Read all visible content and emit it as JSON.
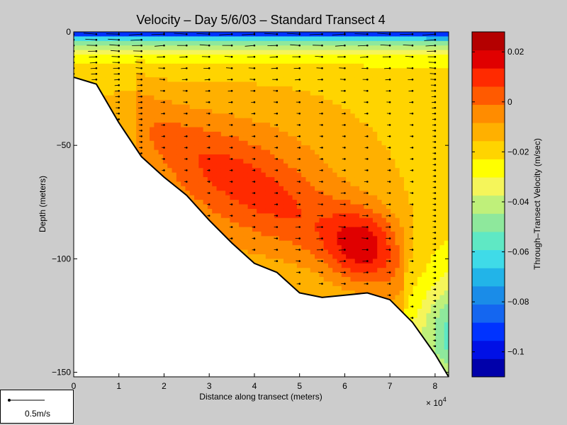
{
  "chart_data": {
    "type": "heatmap",
    "title": "Velocity – Day 5/6/03 – Standard Transect 4",
    "xlabel": "Distance along transect (meters)",
    "ylabel": "Depth (meters)",
    "x_multiplier_label": "× 10",
    "x_multiplier_exp": "4",
    "xlim": [
      0,
      8.3
    ],
    "ylim": [
      -152,
      0
    ],
    "x_ticks": [
      "0",
      "1",
      "2",
      "3",
      "4",
      "5",
      "6",
      "7",
      "8"
    ],
    "y_ticks": [
      "0",
      "−50",
      "−100",
      "−150"
    ],
    "colorbar": {
      "label": "Through–Transect Velocity (m/sec)",
      "ticks": [
        "0.02",
        "0",
        "−0.02",
        "−0.04",
        "−0.06",
        "−0.08",
        "−0.1"
      ],
      "tick_values": [
        0.02,
        0,
        -0.02,
        -0.04,
        -0.06,
        -0.08,
        -0.1
      ],
      "range": [
        -0.11,
        0.028
      ],
      "levels": [
        -0.11,
        -0.1,
        -0.09,
        -0.08,
        -0.07,
        -0.06,
        -0.05,
        -0.04,
        -0.03,
        -0.02,
        -0.01,
        0,
        0.01,
        0.02
      ],
      "colors": [
        "#0000aa",
        "#0010e6",
        "#0033ff",
        "#1466f0",
        "#1a8ce8",
        "#22b4e8",
        "#3fdbe8",
        "#5fe8c4",
        "#8ee89c",
        "#bff07a",
        "#f5f55a",
        "#ffff00",
        "#ffd400",
        "#ffb000",
        "#ff8c00",
        "#ff5a00",
        "#ff2a00",
        "#e00000",
        "#b40000"
      ]
    },
    "bottom_profile": {
      "x": [
        0,
        0.5,
        1.0,
        1.5,
        2.0,
        2.5,
        3.0,
        3.5,
        4.0,
        4.5,
        5.0,
        5.5,
        6.0,
        6.5,
        7.0,
        7.5,
        8.0,
        8.3
      ],
      "depth": [
        -20,
        -23,
        -40,
        -55,
        -64,
        -72,
        -83,
        -93,
        -102,
        -106,
        -115,
        -117,
        -116,
        -115,
        -118,
        -128,
        -142,
        -152
      ]
    },
    "velocity_core": {
      "x": 6.4,
      "depth": -93,
      "value": 0.02
    },
    "scale_vector": {
      "label": "0.5m/s",
      "magnitude": 0.5
    }
  }
}
